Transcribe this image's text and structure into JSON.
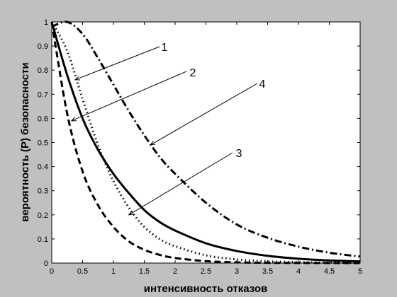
{
  "chart_data": {
    "type": "line",
    "title": "",
    "xlabel": "интенсивность отказов",
    "ylabel": "вероятность (P)  безопасности",
    "xlim": [
      0,
      5
    ],
    "ylim": [
      0,
      1
    ],
    "xticks": [
      "0",
      "0.5",
      "1",
      "1.5",
      "2",
      "2.5",
      "3",
      "3.5",
      "4",
      "4.5",
      "5"
    ],
    "yticks": [
      "0",
      "0.1",
      "0.2",
      "0.3",
      "0.4",
      "0.5",
      "0.6",
      "0.7",
      "0.8",
      "0.9",
      "1"
    ],
    "grid": false,
    "legend": "none",
    "series": [
      {
        "label": "1",
        "line_style": "dotted",
        "x": [
          0,
          0.25,
          0.5,
          0.75,
          1,
          1.25,
          1.5,
          1.75,
          2,
          2.5,
          3,
          3.5,
          4,
          4.5,
          5
        ],
        "y": [
          1,
          0.88,
          0.68,
          0.49,
          0.34,
          0.23,
          0.15,
          0.1,
          0.07,
          0.032,
          0.015,
          0.007,
          0.004,
          0.002,
          0.001
        ]
      },
      {
        "label": "2",
        "line_style": "dashed",
        "x": [
          0,
          0.25,
          0.5,
          0.75,
          1,
          1.25,
          1.5,
          1.75,
          2,
          2.5,
          3,
          3.5,
          4,
          4.5,
          5
        ],
        "y": [
          1,
          0.62,
          0.38,
          0.24,
          0.15,
          0.09,
          0.055,
          0.034,
          0.021,
          0.008,
          0.003,
          0.001,
          0.0005,
          0.0002,
          0.0001
        ]
      },
      {
        "label": "3",
        "line_style": "solid",
        "x": [
          0,
          0.25,
          0.5,
          0.75,
          1,
          1.25,
          1.5,
          1.75,
          2,
          2.5,
          3,
          3.5,
          4,
          4.5,
          5
        ],
        "y": [
          1,
          0.78,
          0.6,
          0.47,
          0.37,
          0.29,
          0.22,
          0.17,
          0.135,
          0.082,
          0.05,
          0.03,
          0.018,
          0.011,
          0.007
        ]
      },
      {
        "label": "4",
        "line_style": "dash-dot",
        "x": [
          0,
          0.25,
          0.5,
          0.75,
          1,
          1.25,
          1.5,
          1.75,
          2,
          2.5,
          3,
          3.5,
          4,
          4.5,
          5
        ],
        "y": [
          0.98,
          1.0,
          0.95,
          0.85,
          0.74,
          0.63,
          0.53,
          0.44,
          0.37,
          0.25,
          0.16,
          0.105,
          0.068,
          0.043,
          0.027
        ]
      }
    ],
    "annotations": [
      {
        "text": "1",
        "points_to": {
          "x": 0.38,
          "y": 0.76
        }
      },
      {
        "text": "2",
        "points_to": {
          "x": 0.32,
          "y": 0.59
        }
      },
      {
        "text": "4",
        "points_to": {
          "x": 1.6,
          "y": 0.49
        }
      },
      {
        "text": "3",
        "points_to": {
          "x": 1.25,
          "y": 0.2
        }
      }
    ]
  }
}
